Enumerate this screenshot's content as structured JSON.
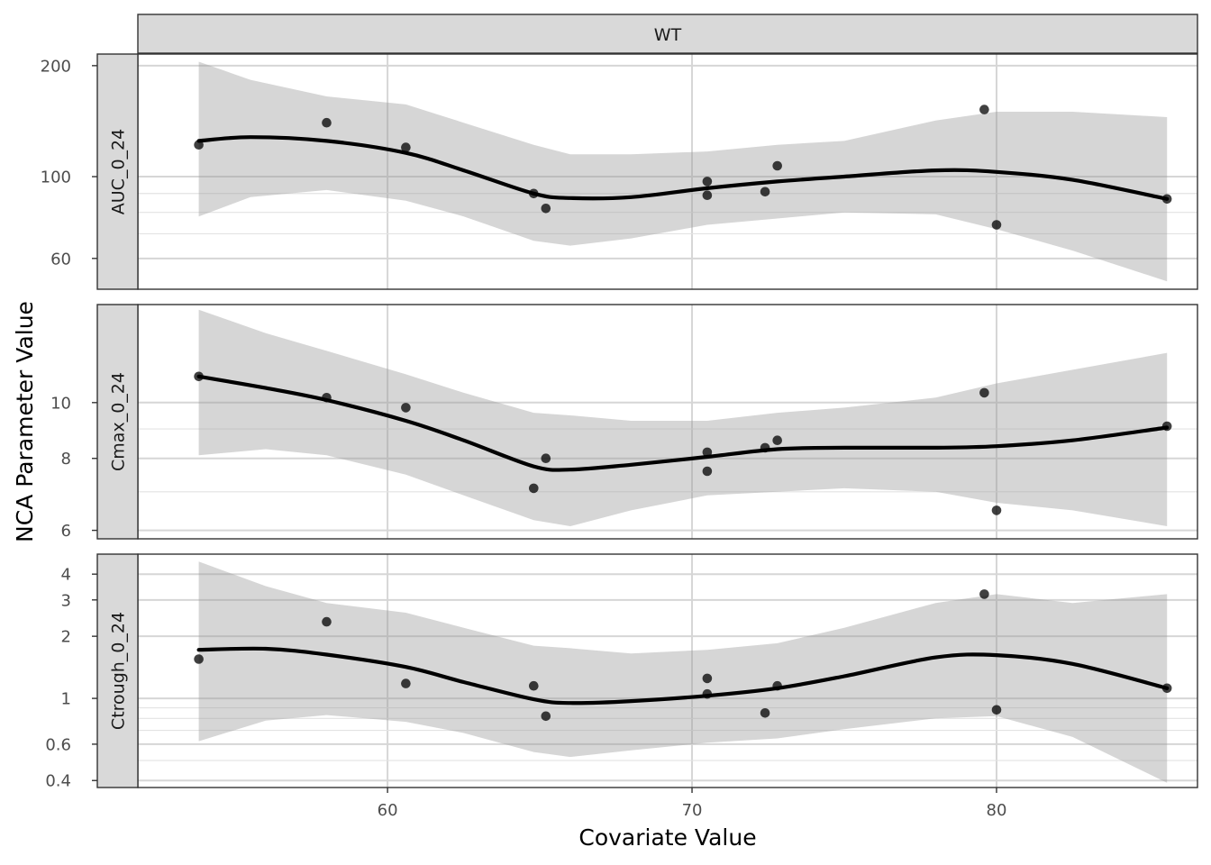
{
  "chart_data": {
    "type": "scatter",
    "xlabel": "Covariate Value",
    "ylabel": "NCA Parameter Value",
    "column_facet": "WT",
    "xlim": [
      51.8,
      86.6
    ],
    "x_ticks": [
      60,
      70,
      80
    ],
    "grid": true,
    "y_scale": "log",
    "panels": [
      {
        "label": "AUC_0_24",
        "ylim": [
          49.5,
          215
        ],
        "y_ticks": [
          60,
          100,
          200
        ],
        "y_minor": [
          70,
          80,
          90
        ],
        "points": [
          [
            53.8,
            122
          ],
          [
            58,
            140
          ],
          [
            60.6,
            120
          ],
          [
            64.8,
            90
          ],
          [
            65.2,
            82
          ],
          [
            70.5,
            97
          ],
          [
            70.5,
            89
          ],
          [
            72.4,
            91
          ],
          [
            72.8,
            107
          ],
          [
            79.6,
            152
          ],
          [
            80,
            74
          ],
          [
            85.6,
            87
          ]
        ],
        "smooth": [
          [
            53.8,
            125
          ],
          [
            55.5,
            128
          ],
          [
            58,
            125
          ],
          [
            60.6,
            116
          ],
          [
            62.5,
            104
          ],
          [
            64.8,
            90
          ],
          [
            66,
            87.5
          ],
          [
            68,
            88
          ],
          [
            70.5,
            93
          ],
          [
            72.8,
            97
          ],
          [
            75,
            100
          ],
          [
            78,
            104
          ],
          [
            80,
            103
          ],
          [
            82.5,
            98
          ],
          [
            85.6,
            87
          ]
        ],
        "ribbon_lower": [
          [
            53.8,
            78
          ],
          [
            55.5,
            88
          ],
          [
            58,
            92
          ],
          [
            60.6,
            86
          ],
          [
            62.5,
            78
          ],
          [
            64.8,
            67
          ],
          [
            66,
            65
          ],
          [
            68,
            68
          ],
          [
            70.5,
            74
          ],
          [
            72.8,
            77
          ],
          [
            75,
            80
          ],
          [
            78,
            79
          ],
          [
            80,
            72
          ],
          [
            82.5,
            63
          ],
          [
            85.6,
            52
          ]
        ],
        "ribbon_upper": [
          [
            53.8,
            205
          ],
          [
            55.5,
            183
          ],
          [
            58,
            165
          ],
          [
            60.6,
            157
          ],
          [
            62.5,
            140
          ],
          [
            64.8,
            122
          ],
          [
            66,
            115
          ],
          [
            68,
            115
          ],
          [
            70.5,
            117
          ],
          [
            72.8,
            122
          ],
          [
            75,
            125
          ],
          [
            78,
            142
          ],
          [
            80,
            150
          ],
          [
            82.5,
            150
          ],
          [
            85.6,
            145
          ]
        ]
      },
      {
        "label": "Cmax_0_24",
        "ylim": [
          5.8,
          14.8
        ],
        "y_ticks": [
          6,
          8,
          10
        ],
        "y_minor": [
          7,
          9
        ],
        "points": [
          [
            53.8,
            11.1
          ],
          [
            58,
            10.2
          ],
          [
            60.6,
            9.8
          ],
          [
            64.8,
            7.1
          ],
          [
            65.2,
            8.0
          ],
          [
            70.5,
            8.2
          ],
          [
            70.5,
            7.6
          ],
          [
            72.4,
            8.35
          ],
          [
            72.8,
            8.6
          ],
          [
            79.6,
            10.4
          ],
          [
            80,
            6.5
          ],
          [
            85.6,
            9.1
          ]
        ],
        "smooth": [
          [
            53.8,
            11.1
          ],
          [
            56,
            10.6
          ],
          [
            58,
            10.1
          ],
          [
            60.6,
            9.3
          ],
          [
            62.5,
            8.6
          ],
          [
            64.8,
            7.75
          ],
          [
            66,
            7.65
          ],
          [
            68,
            7.8
          ],
          [
            70.5,
            8.05
          ],
          [
            72.8,
            8.3
          ],
          [
            75,
            8.35
          ],
          [
            78,
            8.35
          ],
          [
            80,
            8.4
          ],
          [
            82.5,
            8.6
          ],
          [
            85.6,
            9.05
          ]
        ],
        "ribbon_lower": [
          [
            53.8,
            8.1
          ],
          [
            56,
            8.3
          ],
          [
            58,
            8.1
          ],
          [
            60.6,
            7.5
          ],
          [
            62.5,
            6.9
          ],
          [
            64.8,
            6.25
          ],
          [
            66,
            6.1
          ],
          [
            68,
            6.5
          ],
          [
            70.5,
            6.9
          ],
          [
            72.8,
            7.0
          ],
          [
            75,
            7.1
          ],
          [
            78,
            7.0
          ],
          [
            80,
            6.7
          ],
          [
            82.5,
            6.5
          ],
          [
            85.6,
            6.1
          ]
        ],
        "ribbon_upper": [
          [
            53.8,
            14.5
          ],
          [
            56,
            13.2
          ],
          [
            58,
            12.3
          ],
          [
            60.6,
            11.2
          ],
          [
            62.5,
            10.4
          ],
          [
            64.8,
            9.6
          ],
          [
            66,
            9.5
          ],
          [
            68,
            9.3
          ],
          [
            70.5,
            9.3
          ],
          [
            72.8,
            9.6
          ],
          [
            75,
            9.8
          ],
          [
            78,
            10.2
          ],
          [
            80,
            10.8
          ],
          [
            82.5,
            11.4
          ],
          [
            85.6,
            12.2
          ]
        ]
      },
      {
        "label": "Ctrough_0_24",
        "ylim": [
          0.37,
          5.0
        ],
        "y_ticks": [
          0.4,
          0.6,
          1,
          2,
          3,
          4
        ],
        "y_minor": [
          0.5,
          0.7,
          0.8,
          0.9
        ],
        "points": [
          [
            53.8,
            1.55
          ],
          [
            58,
            2.35
          ],
          [
            60.6,
            1.18
          ],
          [
            64.8,
            1.15
          ],
          [
            65.2,
            0.82
          ],
          [
            70.5,
            1.25
          ],
          [
            70.5,
            1.05
          ],
          [
            72.4,
            0.85
          ],
          [
            72.8,
            1.15
          ],
          [
            79.6,
            3.2
          ],
          [
            80,
            0.88
          ],
          [
            85.6,
            1.12
          ]
        ],
        "smooth": [
          [
            53.8,
            1.72
          ],
          [
            56,
            1.74
          ],
          [
            58,
            1.63
          ],
          [
            60.6,
            1.42
          ],
          [
            62.5,
            1.2
          ],
          [
            64.8,
            0.99
          ],
          [
            66,
            0.95
          ],
          [
            68,
            0.97
          ],
          [
            70.5,
            1.03
          ],
          [
            72.8,
            1.12
          ],
          [
            75,
            1.28
          ],
          [
            78,
            1.58
          ],
          [
            80,
            1.62
          ],
          [
            82.5,
            1.47
          ],
          [
            85.6,
            1.12
          ]
        ],
        "ribbon_lower": [
          [
            53.8,
            0.62
          ],
          [
            56,
            0.78
          ],
          [
            58,
            0.83
          ],
          [
            60.6,
            0.77
          ],
          [
            62.5,
            0.68
          ],
          [
            64.8,
            0.55
          ],
          [
            66,
            0.52
          ],
          [
            68,
            0.56
          ],
          [
            70.5,
            0.61
          ],
          [
            72.8,
            0.64
          ],
          [
            75,
            0.71
          ],
          [
            78,
            0.8
          ],
          [
            80,
            0.82
          ],
          [
            82.5,
            0.65
          ],
          [
            85.6,
            0.39
          ]
        ],
        "ribbon_upper": [
          [
            53.8,
            4.6
          ],
          [
            56,
            3.5
          ],
          [
            58,
            2.9
          ],
          [
            60.6,
            2.6
          ],
          [
            62.5,
            2.2
          ],
          [
            64.8,
            1.8
          ],
          [
            66,
            1.75
          ],
          [
            68,
            1.65
          ],
          [
            70.5,
            1.72
          ],
          [
            72.8,
            1.85
          ],
          [
            75,
            2.2
          ],
          [
            78,
            2.9
          ],
          [
            80,
            3.2
          ],
          [
            82.5,
            2.9
          ],
          [
            85.6,
            3.2
          ]
        ]
      }
    ]
  }
}
